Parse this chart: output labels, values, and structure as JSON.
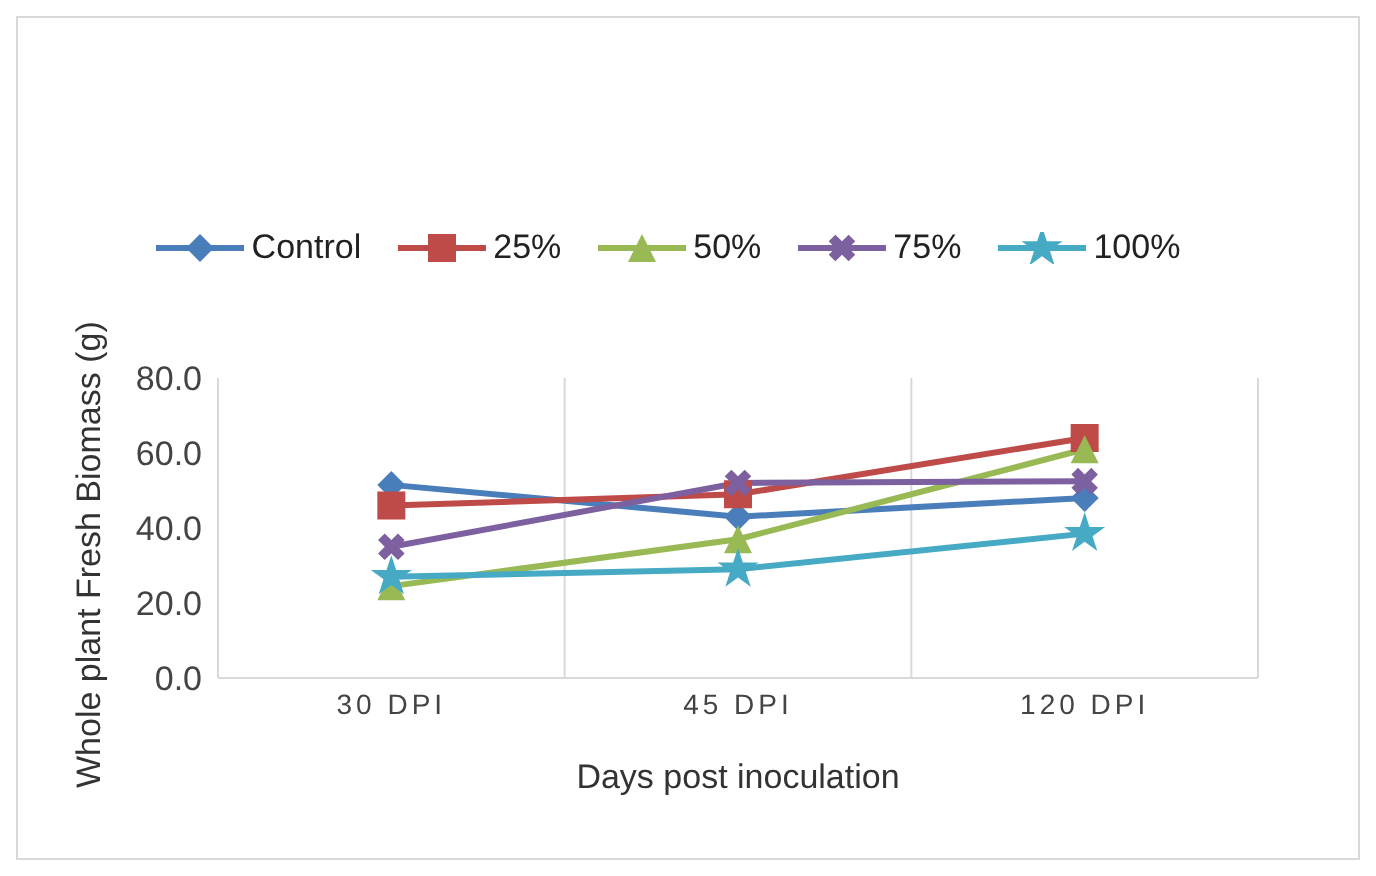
{
  "chart_data": {
    "type": "line",
    "xlabel": "Days post inoculation",
    "ylabel": "Whole plant Fresh  Biomass (g)",
    "categories": [
      "30 DPI",
      "45 DPI",
      "120 DPI"
    ],
    "series": [
      {
        "name": "Control",
        "color": "#4a7ebb",
        "marker": "diamond",
        "values": [
          51.5,
          43,
          48
        ]
      },
      {
        "name": "25%",
        "color": "#be4b48",
        "marker": "square",
        "values": [
          46,
          49,
          64
        ]
      },
      {
        "name": "50%",
        "color": "#98b954",
        "marker": "triangle",
        "values": [
          24.5,
          37,
          61
        ]
      },
      {
        "name": "75%",
        "color": "#7d60a0",
        "marker": "cross",
        "values": [
          35,
          52,
          52.5
        ]
      },
      {
        "name": "100%",
        "color": "#46aac5",
        "marker": "star",
        "values": [
          27,
          29,
          38.5
        ]
      }
    ],
    "ylim": [
      0,
      80
    ],
    "yticks": [
      {
        "value": 0,
        "label": "0.0"
      },
      {
        "value": 20,
        "label": "20.0"
      },
      {
        "value": 40,
        "label": "40.0"
      },
      {
        "value": 60,
        "label": "60.0"
      },
      {
        "value": 80,
        "label": "80.0"
      }
    ],
    "grid": "x",
    "legend": "top"
  }
}
